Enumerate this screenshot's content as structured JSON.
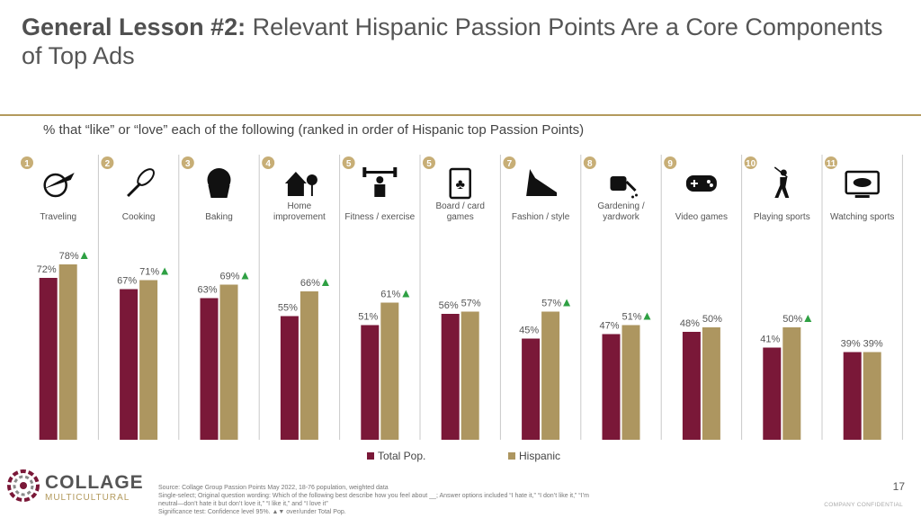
{
  "slide": {
    "title_bold": "General Lesson #2:",
    "title_rest": " Relevant Hispanic Passion Points Are a Core Components of Top Ads",
    "subtitle": "% that “like” or “love” each of the following (ranked in order of Hispanic top Passion Points)",
    "source_lines": [
      "Source: Collage Group Passion Points May 2022, 18-76 population, weighted data",
      "Single-select; Original question wording: Which of the following best describe how you feel about __; Answer options included “I hate it,” “I don’t like it,” “I’m",
      "neutral—don’t hate it but don’t love it,” “I like it,” and “I love it”",
      "Significance test: Confidence level 95%. ▲▼ over/under Total Pop."
    ],
    "page_number": "17",
    "confidential": "COMPANY CONFIDENTIAL",
    "logo_line1": "COLLAGE",
    "logo_line2": "MULTICULTURAL"
  },
  "colors": {
    "total": "#7a1838",
    "hispanic": "#ad9660",
    "rank_badge": "#c7ae76",
    "up_arrow": "#2ea043",
    "divider": "#c9c9c9",
    "rule": "#b39a5d"
  },
  "chart_data": {
    "type": "bar",
    "categories": [
      "Traveling",
      "Cooking",
      "Baking",
      "Home improvement",
      "Fitness / exercise",
      "Board / card games",
      "Fashion / style",
      "Gardening / yardwork",
      "Video games",
      "Playing sports",
      "Watching sports"
    ],
    "category_lines": [
      [
        "Traveling"
      ],
      [
        "Cooking"
      ],
      [
        "Baking"
      ],
      [
        "Home",
        "improvement"
      ],
      [
        "Fitness / exercise"
      ],
      [
        "Board / card",
        "games"
      ],
      [
        "Fashion / style"
      ],
      [
        "Gardening /",
        "yardwork"
      ],
      [
        "Video games"
      ],
      [
        "Playing sports"
      ],
      [
        "Watching sports"
      ]
    ],
    "ranks": [
      "1",
      "2",
      "3",
      "4",
      "5",
      "5",
      "7",
      "8",
      "9",
      "10",
      "11"
    ],
    "icons": [
      "travel-icon",
      "whisk-icon",
      "muffin-icon",
      "house-icon",
      "weightlifter-icon",
      "playing-card-icon",
      "high-heel-icon",
      "watering-can-icon",
      "gamepad-icon",
      "golfer-icon",
      "football-tv-icon"
    ],
    "series": [
      {
        "name": "Total Pop.",
        "values": [
          72,
          67,
          63,
          55,
          51,
          56,
          45,
          47,
          48,
          41,
          39
        ]
      },
      {
        "name": "Hispanic",
        "values": [
          78,
          71,
          69,
          66,
          61,
          57,
          57,
          51,
          50,
          50,
          39
        ]
      }
    ],
    "significant_up": [
      true,
      true,
      true,
      true,
      true,
      false,
      true,
      true,
      false,
      true,
      false
    ],
    "ylim": [
      0,
      100
    ],
    "legend": "bottom-center"
  }
}
